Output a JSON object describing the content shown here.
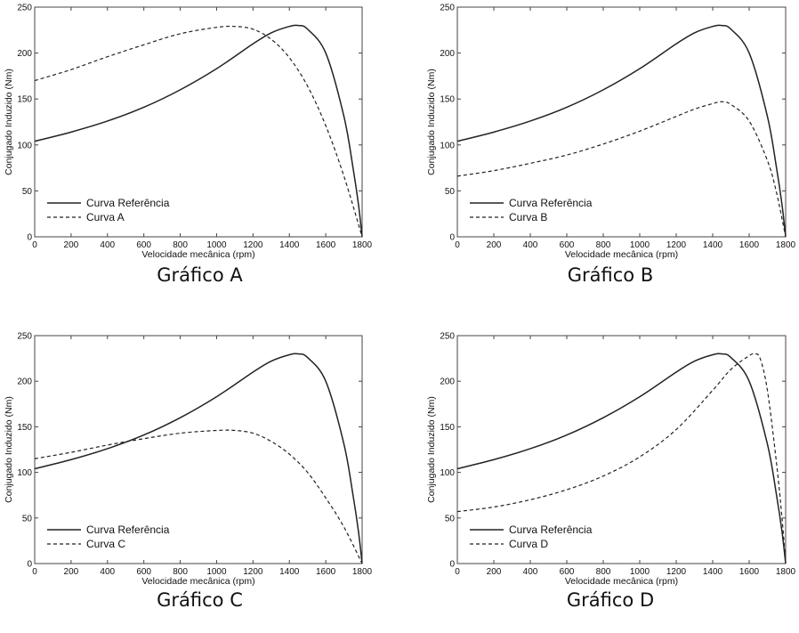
{
  "chart_data": [
    {
      "type": "line",
      "caption": "Gráfico A",
      "xlabel": "Velocidade mecânica (rpm)",
      "ylabel": "Conjugado Induzido (Nm)",
      "xlim": [
        0,
        1800
      ],
      "ylim": [
        0,
        250
      ],
      "xticks": [
        "0",
        "200",
        "400",
        "600",
        "800",
        "1000",
        "1200",
        "1400",
        "1600",
        "1800"
      ],
      "yticks": [
        "0",
        "50",
        "100",
        "150",
        "200",
        "250"
      ],
      "grid": false,
      "legend": "bottom-left",
      "series": [
        {
          "name": "Curva Referência",
          "style": "solid",
          "x": [
            0,
            200,
            400,
            600,
            800,
            1000,
            1200,
            1300,
            1400,
            1450,
            1500,
            1600,
            1700,
            1750,
            1780,
            1800
          ],
          "y": [
            104,
            114,
            126,
            141,
            160,
            183,
            210,
            222,
            229,
            230,
            226,
            200,
            131,
            75,
            35,
            0
          ]
        },
        {
          "name": "Curva A",
          "style": "dashed",
          "x": [
            0,
            200,
            400,
            600,
            800,
            1000,
            1100,
            1200,
            1300,
            1400,
            1500,
            1600,
            1700,
            1800
          ],
          "y": [
            170,
            182,
            196,
            209,
            221,
            228,
            229,
            226,
            215,
            195,
            164,
            121,
            66,
            0
          ]
        }
      ]
    },
    {
      "type": "line",
      "caption": "Gráfico B",
      "xlabel": "Velocidade mecânica (rpm)",
      "ylabel": "Conjugado Induzido (Nm)",
      "xlim": [
        0,
        1800
      ],
      "ylim": [
        0,
        250
      ],
      "xticks": [
        "0",
        "200",
        "400",
        "600",
        "800",
        "1000",
        "1200",
        "1400",
        "1600",
        "1800"
      ],
      "yticks": [
        "0",
        "50",
        "100",
        "150",
        "200",
        "250"
      ],
      "grid": false,
      "legend": "bottom-left",
      "series": [
        {
          "name": "Curva Referência",
          "style": "solid",
          "x": [
            0,
            200,
            400,
            600,
            800,
            1000,
            1200,
            1300,
            1400,
            1450,
            1500,
            1600,
            1700,
            1750,
            1780,
            1800
          ],
          "y": [
            104,
            114,
            126,
            141,
            160,
            183,
            210,
            222,
            229,
            230,
            226,
            200,
            131,
            75,
            35,
            0
          ]
        },
        {
          "name": "Curva B",
          "style": "dashed",
          "x": [
            0,
            200,
            400,
            600,
            800,
            1000,
            1200,
            1300,
            1400,
            1450,
            1500,
            1600,
            1700,
            1750,
            1800
          ],
          "y": [
            66,
            72,
            80,
            89,
            101,
            115,
            131,
            139,
            145,
            147,
            144,
            126,
            83,
            48,
            0
          ]
        }
      ]
    },
    {
      "type": "line",
      "caption": "Gráfico C",
      "xlabel": "Velocidade mecânica (rpm)",
      "ylabel": "Conjugado Induzido (Nm)",
      "xlim": [
        0,
        1800
      ],
      "ylim": [
        0,
        250
      ],
      "xticks": [
        "0",
        "200",
        "400",
        "600",
        "800",
        "1000",
        "1200",
        "1400",
        "1600",
        "1800"
      ],
      "yticks": [
        "0",
        "50",
        "100",
        "150",
        "200",
        "250"
      ],
      "grid": false,
      "legend": "bottom-left",
      "series": [
        {
          "name": "Curva Referência",
          "style": "solid",
          "x": [
            0,
            200,
            400,
            600,
            800,
            1000,
            1200,
            1300,
            1400,
            1450,
            1500,
            1600,
            1700,
            1750,
            1780,
            1800
          ],
          "y": [
            104,
            114,
            126,
            141,
            160,
            183,
            210,
            222,
            229,
            230,
            226,
            200,
            131,
            75,
            35,
            0
          ]
        },
        {
          "name": "Curva C",
          "style": "dashed",
          "x": [
            0,
            200,
            400,
            600,
            800,
            1000,
            1100,
            1200,
            1300,
            1400,
            1500,
            1600,
            1700,
            1800
          ],
          "y": [
            115,
            122,
            130,
            137,
            143,
            146,
            146,
            143,
            134,
            120,
            100,
            72,
            40,
            0
          ]
        }
      ]
    },
    {
      "type": "line",
      "caption": "Gráfico D",
      "xlabel": "Velocidade mecânica (rpm)",
      "ylabel": "Conjugado Induzido (Nm)",
      "xlim": [
        0,
        1800
      ],
      "ylim": [
        0,
        250
      ],
      "xticks": [
        "0",
        "200",
        "400",
        "600",
        "800",
        "1000",
        "1200",
        "1400",
        "1600",
        "1800"
      ],
      "yticks": [
        "0",
        "50",
        "100",
        "150",
        "200",
        "250"
      ],
      "grid": false,
      "legend": "bottom-left",
      "series": [
        {
          "name": "Curva Referência",
          "style": "solid",
          "x": [
            0,
            200,
            400,
            600,
            800,
            1000,
            1200,
            1300,
            1400,
            1450,
            1500,
            1600,
            1700,
            1750,
            1780,
            1800
          ],
          "y": [
            104,
            114,
            126,
            141,
            160,
            183,
            210,
            222,
            229,
            230,
            226,
            200,
            131,
            75,
            35,
            0
          ]
        },
        {
          "name": "Curva D",
          "style": "dashed",
          "x": [
            0,
            200,
            400,
            600,
            800,
            1000,
            1200,
            1400,
            1500,
            1600,
            1630,
            1660,
            1700,
            1750,
            1780,
            1800
          ],
          "y": [
            57,
            62,
            70,
            81,
            96,
            117,
            147,
            190,
            213,
            228,
            230,
            225,
            190,
            110,
            50,
            0
          ]
        }
      ]
    }
  ]
}
